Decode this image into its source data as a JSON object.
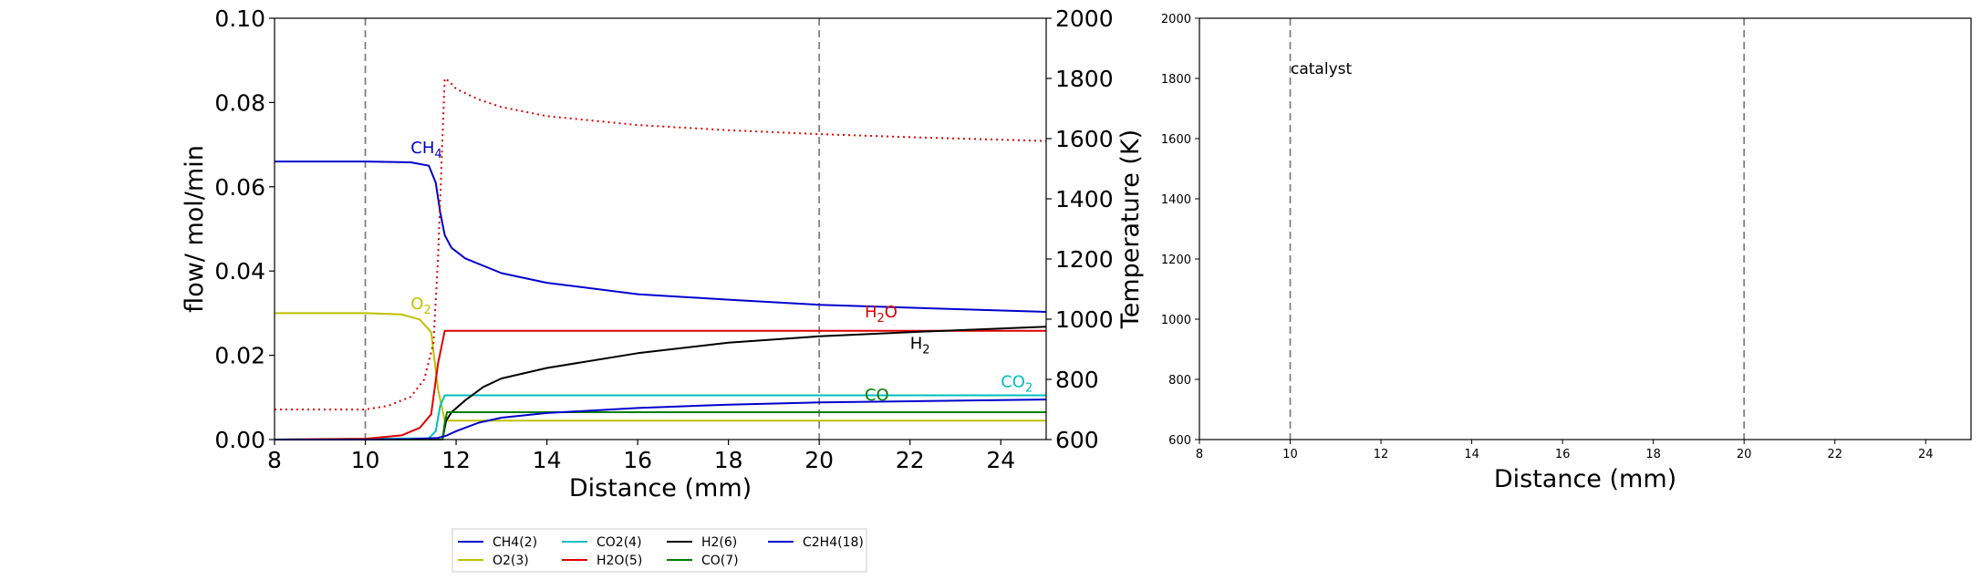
{
  "left_chart": {
    "xlabel": "Distance (mm)",
    "ylabel_left": "flow/ mol/min",
    "ylabel_right": "Temperature (K)",
    "x_ticks": [
      "8",
      "10",
      "12",
      "14",
      "16",
      "18",
      "20",
      "22",
      "24"
    ],
    "y_left_ticks": [
      "0.00",
      "0.02",
      "0.04",
      "0.06",
      "0.08",
      "0.10"
    ],
    "y_right_ticks": [
      "600",
      "800",
      "1000",
      "1200",
      "1400",
      "1600",
      "1800",
      "2000"
    ]
  },
  "right_chart": {
    "xlabel": "Distance (mm)",
    "annotation": "catalyst",
    "x_ticks": [
      "8",
      "10",
      "12",
      "14",
      "16",
      "18",
      "20",
      "22",
      "24"
    ],
    "y_ticks": [
      "600",
      "800",
      "1000",
      "1200",
      "1400",
      "1600",
      "1800",
      "2000"
    ]
  },
  "legend": {
    "entries": [
      {
        "label": "CH4(2)",
        "color": "#0000cc"
      },
      {
        "label": "O2(3)",
        "color": "#bfbf00"
      },
      {
        "label": "CO2(4)",
        "color": "#00bfbf"
      },
      {
        "label": "H2O(5)",
        "color": "#e00000"
      },
      {
        "label": "H2(6)",
        "color": "#000000"
      },
      {
        "label": "CO(7)",
        "color": "#007f00"
      },
      {
        "label": "C2H4(18)",
        "color": "#0000cc"
      }
    ]
  },
  "chart_data": [
    {
      "type": "line",
      "xlabel": "Distance (mm)",
      "ylabel": "flow/ mol/min",
      "y2label": "Temperature (K)",
      "xlim": [
        8,
        25
      ],
      "ylim": [
        0,
        0.1
      ],
      "y2lim": [
        600,
        2000
      ],
      "vlines": [
        10,
        20
      ],
      "grid": false,
      "legend_position": "below",
      "series_annotations": [
        {
          "series": "CH4(2)",
          "base": "CH",
          "sub": "4",
          "x": 11.0,
          "y": 0.068,
          "color": "#0000cc"
        },
        {
          "series": "O2(3)",
          "base": "O",
          "sub": "2",
          "x": 11.0,
          "y": 0.031,
          "color": "#bfbf00"
        },
        {
          "series": "H2O(5)",
          "base": "H",
          "sub": "2",
          "tail": "O",
          "x": 21.0,
          "y": 0.029,
          "color": "#e00000"
        },
        {
          "series": "H2(6)",
          "base": "H",
          "sub": "2",
          "x": 22.0,
          "y": 0.0215,
          "color": "#000000"
        },
        {
          "series": "CO2(4)",
          "base": "CO",
          "sub": "2",
          "x": 24.0,
          "y": 0.0125,
          "color": "#00bfbf"
        },
        {
          "series": "CO(7)",
          "base": "CO",
          "sub": "",
          "x": 21.0,
          "y": 0.0093,
          "color": "#007f00"
        }
      ],
      "series": [
        {
          "name": "CH4(2)",
          "color": "#0000cc",
          "x": [
            8,
            10,
            11,
            11.4,
            11.55,
            11.65,
            11.75,
            11.9,
            12.2,
            13,
            14,
            16,
            18,
            20,
            22,
            25
          ],
          "y": [
            0.066,
            0.066,
            0.0658,
            0.065,
            0.061,
            0.054,
            0.0485,
            0.0455,
            0.043,
            0.0395,
            0.0372,
            0.0345,
            0.0332,
            0.032,
            0.0313,
            0.0303
          ]
        },
        {
          "name": "O2(3)",
          "color": "#bfbf00",
          "x": [
            8,
            10,
            10.8,
            11.2,
            11.45,
            11.6,
            11.75,
            11.85,
            25
          ],
          "y": [
            0.03,
            0.03,
            0.0297,
            0.0285,
            0.0255,
            0.012,
            0.0045,
            0.0045,
            0.0045
          ]
        },
        {
          "name": "CO2(4)",
          "color": "#00bfbf",
          "x": [
            8,
            11.4,
            11.55,
            11.65,
            11.75,
            25
          ],
          "y": [
            0,
            0.0003,
            0.002,
            0.008,
            0.0105,
            0.0105
          ]
        },
        {
          "name": "H2O(5)",
          "color": "#e00000",
          "x": [
            8,
            10,
            10.8,
            11.2,
            11.45,
            11.6,
            11.75,
            11.85,
            25
          ],
          "y": [
            0,
            0.0002,
            0.001,
            0.0028,
            0.006,
            0.018,
            0.0258,
            0.0258,
            0.0258
          ]
        },
        {
          "name": "H2(6)",
          "color": "#000000",
          "x": [
            8,
            11.7,
            11.78,
            11.9,
            12.2,
            12.6,
            13,
            14,
            16,
            18,
            20,
            22,
            25
          ],
          "y": [
            0,
            0,
            0.0045,
            0.0065,
            0.0093,
            0.0125,
            0.0145,
            0.017,
            0.0205,
            0.023,
            0.0245,
            0.0255,
            0.0268
          ]
        },
        {
          "name": "CO(7)",
          "color": "#007f00",
          "x": [
            8,
            11.7,
            11.75,
            11.8,
            25
          ],
          "y": [
            0,
            0,
            0.004,
            0.0065,
            0.0065
          ]
        },
        {
          "name": "C2H4(18)",
          "color": "#0000cc",
          "x": [
            8,
            10,
            11,
            11.6,
            11.8,
            12,
            12.5,
            13,
            14,
            16,
            18,
            20,
            22,
            25
          ],
          "y": [
            0,
            0,
            0.0001,
            0.0004,
            0.001,
            0.002,
            0.004,
            0.0052,
            0.0063,
            0.0075,
            0.0083,
            0.0088,
            0.0091,
            0.0095
          ]
        },
        {
          "name": "Temperature",
          "color": "#e00000",
          "style": "dotted",
          "axis": "right",
          "x": [
            8,
            10,
            10.5,
            11,
            11.3,
            11.5,
            11.6,
            11.7,
            11.75,
            11.85,
            12,
            12.5,
            13,
            14,
            16,
            18,
            20,
            22,
            25
          ],
          "y": [
            700,
            700,
            712,
            742,
            800,
            920,
            1200,
            1600,
            1800,
            1790,
            1765,
            1730,
            1705,
            1675,
            1645,
            1628,
            1615,
            1605,
            1592
          ]
        }
      ]
    },
    {
      "type": "line",
      "xlabel": "Distance (mm)",
      "xlim": [
        8,
        25
      ],
      "ylim": [
        600,
        2000
      ],
      "vlines": [
        10,
        20
      ],
      "annotation": {
        "text": "catalyst",
        "x": 10,
        "y": 1830
      },
      "grid": false,
      "series": []
    }
  ]
}
